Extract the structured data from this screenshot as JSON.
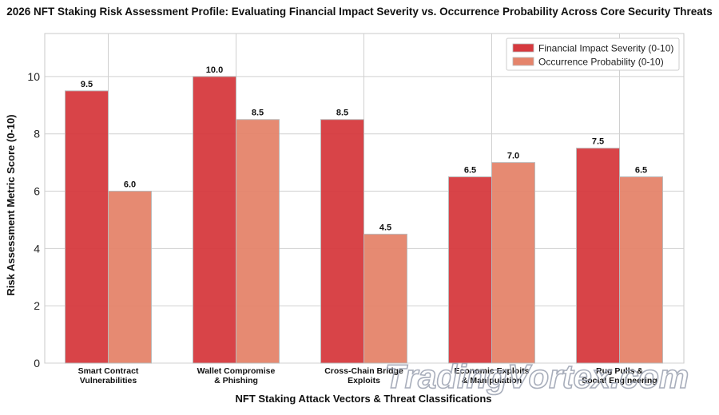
{
  "chart_data": {
    "type": "bar",
    "title": "2026 NFT Staking Risk Assessment Profile: Evaluating Financial Impact Severity vs. Occurrence Probability Across Core Security Threats",
    "xlabel": "NFT Staking Attack Vectors & Threat Classifications",
    "ylabel": "Risk Assessment Metric Score (0-10)",
    "ylim": [
      0,
      11.5
    ],
    "yticks": [
      0,
      2,
      4,
      6,
      8,
      10
    ],
    "grid": true,
    "legend_position": "top-right",
    "categories": [
      [
        "Smart Contract",
        "Vulnerabilities"
      ],
      [
        "Wallet Compromise",
        "& Phishing"
      ],
      [
        "Cross-Chain Bridge",
        "Exploits"
      ],
      [
        "Economic Exploits",
        "& Manipulation"
      ],
      [
        "Rug Pulls &",
        "Social Engineering"
      ]
    ],
    "series": [
      {
        "name": "Financial Impact Severity (0-10)",
        "color": "#d63a3f",
        "values": [
          9.5,
          10.0,
          8.5,
          6.5,
          7.5
        ],
        "labels": [
          "9.5",
          "10.0",
          "8.5",
          "6.5",
          "7.5"
        ]
      },
      {
        "name": "Occurrence Probability (0-10)",
        "color": "#e5846b",
        "values": [
          6.0,
          8.5,
          4.5,
          7.0,
          6.5
        ],
        "labels": [
          "6.0",
          "8.5",
          "4.5",
          "7.0",
          "6.5"
        ]
      }
    ],
    "watermark": "TradingVortex.com"
  }
}
